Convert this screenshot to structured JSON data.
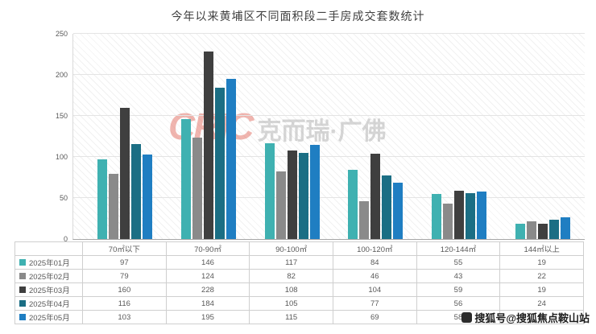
{
  "title": "今年以来黄埔区不同面积段二手房成交套数统计",
  "watermark": {
    "logo": "CRIC",
    "text": "克而瑞·广佛"
  },
  "sohu_watermark": "搜狐号@搜狐焦点鞍山站",
  "chart_data": {
    "type": "bar",
    "title": "今年以来黄埔区不同面积段二手房成交套数统计",
    "categories": [
      "70㎡以下",
      "70-90㎡",
      "90-100㎡",
      "100-120㎡",
      "120-144㎡",
      "144㎡以上"
    ],
    "series": [
      {
        "name": "2025年01月",
        "color": "#3FB1B1",
        "values": [
          97,
          146,
          117,
          84,
          55,
          19
        ]
      },
      {
        "name": "2025年02月",
        "color": "#8A8A8A",
        "values": [
          79,
          124,
          82,
          46,
          43,
          22
        ]
      },
      {
        "name": "2025年03月",
        "color": "#3F3F3F",
        "values": [
          160,
          228,
          108,
          104,
          59,
          19
        ]
      },
      {
        "name": "2025年04月",
        "color": "#1B6E84",
        "values": [
          116,
          184,
          105,
          77,
          56,
          24
        ]
      },
      {
        "name": "2025年05月",
        "color": "#1F7EC2",
        "values": [
          103,
          195,
          115,
          69,
          58,
          26
        ]
      }
    ],
    "xlabel": "",
    "ylabel": "",
    "ylim": [
      0,
      250
    ],
    "yticks": [
      0,
      50,
      100,
      150,
      200,
      250
    ],
    "grid": true,
    "legend_position": "table-below"
  }
}
